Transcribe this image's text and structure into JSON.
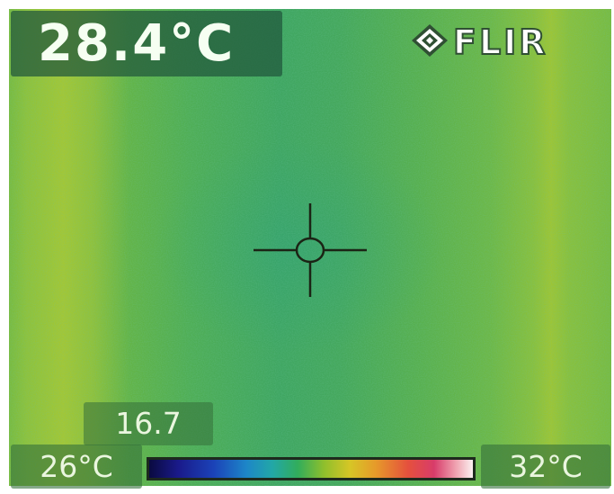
{
  "camera": {
    "temperature_readout": "28.4°C",
    "brand": "FLIR",
    "spot_value": "16.7"
  },
  "scale": {
    "min_label": "26°C",
    "max_label": "32°C"
  },
  "icons": {
    "brand_logo": "flir-diamond-logo-icon",
    "crosshair": "spot-meter-crosshair-icon"
  },
  "colors": {
    "thermal_dominant": "#4fae55",
    "thermal_warm_band": "#a4c733",
    "overlay_text": "#f6fff2"
  }
}
